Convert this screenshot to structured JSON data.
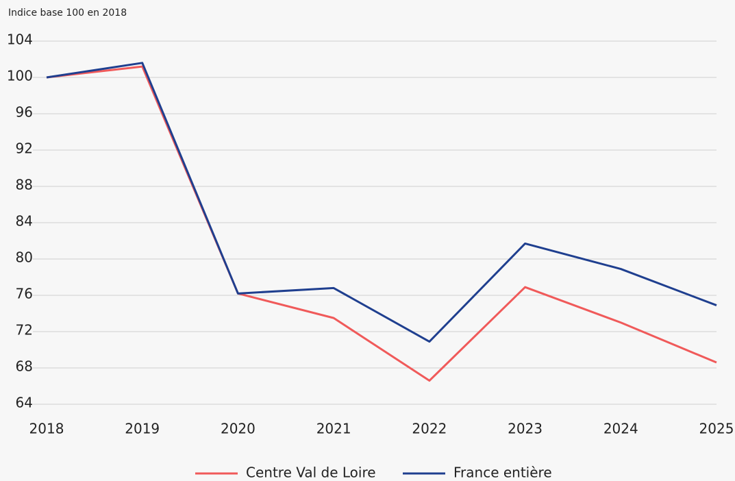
{
  "chart_data": {
    "type": "line",
    "y_axis_label": "Indice base 100 en 2018",
    "categories": [
      "2018",
      "2019",
      "2020",
      "2021",
      "2022",
      "2023",
      "2024",
      "2025"
    ],
    "series": [
      {
        "name": "Centre Val de Loire",
        "color": "#f05a5a",
        "values": [
          100,
          101.2,
          76.2,
          73.5,
          66.6,
          76.9,
          73.0,
          68.6
        ]
      },
      {
        "name": "France entière",
        "color": "#1f3f8f",
        "values": [
          100,
          101.6,
          76.2,
          76.8,
          70.9,
          81.7,
          78.9,
          74.9
        ]
      }
    ],
    "ylim": [
      64,
      104
    ],
    "yticks": [
      64,
      68,
      72,
      76,
      80,
      84,
      88,
      92,
      96,
      100,
      104
    ],
    "grid": true,
    "legend": "bottom"
  }
}
